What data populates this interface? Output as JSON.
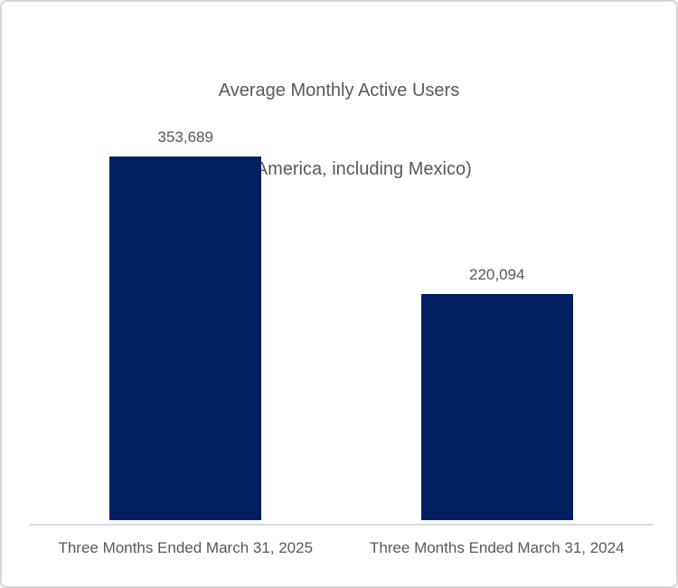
{
  "chart_data": {
    "type": "bar",
    "title": "Average Monthly Active Users",
    "subtitle": "(Latin America, including Mexico)",
    "categories": [
      "Three Months Ended March 31, 2025",
      "Three Months Ended March 31, 2024"
    ],
    "values": [
      353689,
      220094
    ],
    "value_labels": [
      "353,689",
      "220,094"
    ],
    "xlabel": "",
    "ylabel": "",
    "y_axis_visible": false,
    "gridlines": false,
    "legend_position": "none",
    "bar_color": "#002060",
    "text_color": "#595959",
    "axis_line_color": "#d9d9d9"
  }
}
